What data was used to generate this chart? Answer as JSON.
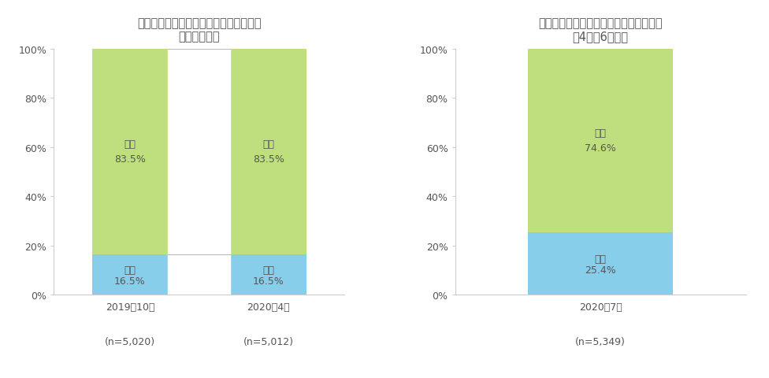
{
  "chart1": {
    "title": "リモートコミュニケーションの利用経験",
    "subtitle": "（これまで）",
    "categories": [
      "2019年10月",
      "2020年4月"
    ],
    "n_labels": [
      "(n=5,020)",
      "(n=5,012)"
    ],
    "aru": [
      16.5,
      16.5
    ],
    "nai": [
      83.5,
      83.5
    ]
  },
  "chart2": {
    "title": "リモートコミュニケーションの利用経験",
    "subtitle": "（4月〜6月末）",
    "categories": [
      "2020年7月"
    ],
    "n_labels": [
      "(n=5,349)"
    ],
    "aru": [
      25.4
    ],
    "nai": [
      74.6
    ]
  },
  "color_aru": "#87CEEB",
  "color_nai": "#BFDF7F",
  "color_gap": "#FFFFFF",
  "text_color": "#555555",
  "axis_color": "#CCCCCC",
  "label_aru": "ある",
  "label_nai": "ない",
  "title_fontsize": 10.5,
  "tick_fontsize": 9,
  "bar_width": 0.55,
  "background_color": "#FFFFFF"
}
